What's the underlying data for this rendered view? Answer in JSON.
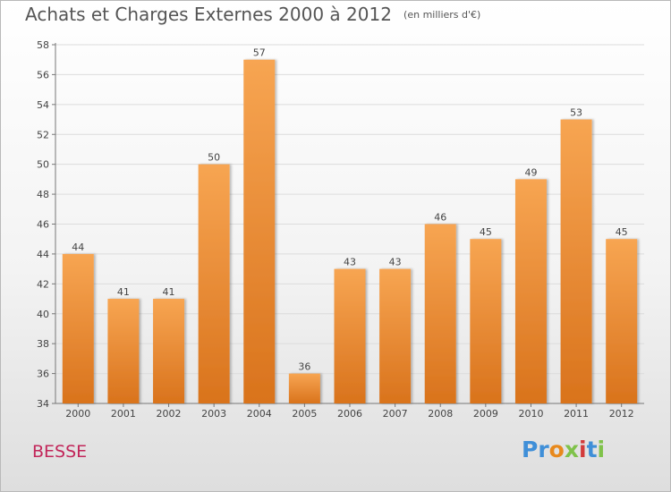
{
  "chart_data": {
    "type": "bar",
    "title": "Achats et Charges Externes 2000 à 2012",
    "subtitle": "(en milliers d'€)",
    "categories": [
      "2000",
      "2001",
      "2002",
      "2003",
      "2004",
      "2005",
      "2006",
      "2007",
      "2008",
      "2009",
      "2010",
      "2011",
      "2012"
    ],
    "values": [
      44,
      41,
      41,
      50,
      57,
      36,
      43,
      43,
      46,
      45,
      49,
      53,
      45
    ],
    "ylim": [
      34,
      58
    ],
    "yticks": [
      34,
      36,
      38,
      40,
      42,
      44,
      46,
      48,
      50,
      52,
      54,
      56,
      58
    ],
    "grid": true,
    "bar_color": "#f29b45",
    "data_labels": true
  },
  "commune": "BESSE",
  "logo": {
    "letters": [
      "P",
      "r",
      "o",
      "x",
      "i",
      "t",
      "i"
    ],
    "colors": [
      "#3f8fd8",
      "#3f8fd8",
      "#e8891c",
      "#7fc24a",
      "#d23b3b",
      "#3f8fd8",
      "#7fc24a"
    ]
  }
}
